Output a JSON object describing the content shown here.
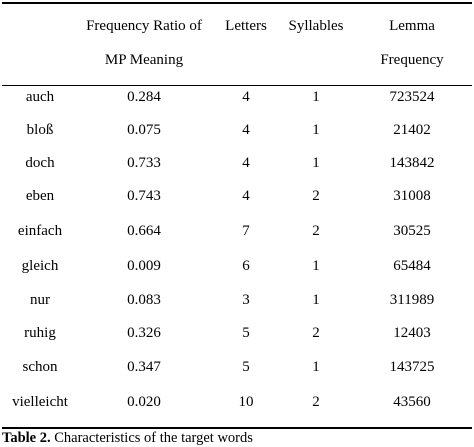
{
  "table": {
    "header_line1": [
      "",
      "Frequency Ratio of",
      "Letters",
      "Syllables",
      "Lemma"
    ],
    "header_line2": [
      "",
      "MP Meaning",
      "",
      "",
      "Frequency"
    ],
    "rows": [
      [
        "auch",
        "0.284",
        "4",
        "1",
        "723524"
      ],
      [
        "bloß",
        "0.075",
        "4",
        "1",
        "21402"
      ],
      [
        "doch",
        "0.733",
        "4",
        "1",
        "143842"
      ],
      [
        "eben",
        "0.743",
        "4",
        "2",
        "31008"
      ],
      [
        "einfach",
        "0.664",
        "7",
        "2",
        "30525"
      ],
      [
        "gleich",
        "0.009",
        "6",
        "1",
        "65484"
      ],
      [
        "nur",
        "0.083",
        "3",
        "1",
        "311989"
      ],
      [
        "ruhig",
        "0.326",
        "5",
        "2",
        "12403"
      ],
      [
        "schon",
        "0.347",
        "5",
        "1",
        "143725"
      ],
      [
        "vielleicht",
        "0.020",
        "10",
        "2",
        "43560"
      ]
    ]
  },
  "caption": {
    "label": "Table 2.",
    "text": " Characteristics of the target words"
  }
}
